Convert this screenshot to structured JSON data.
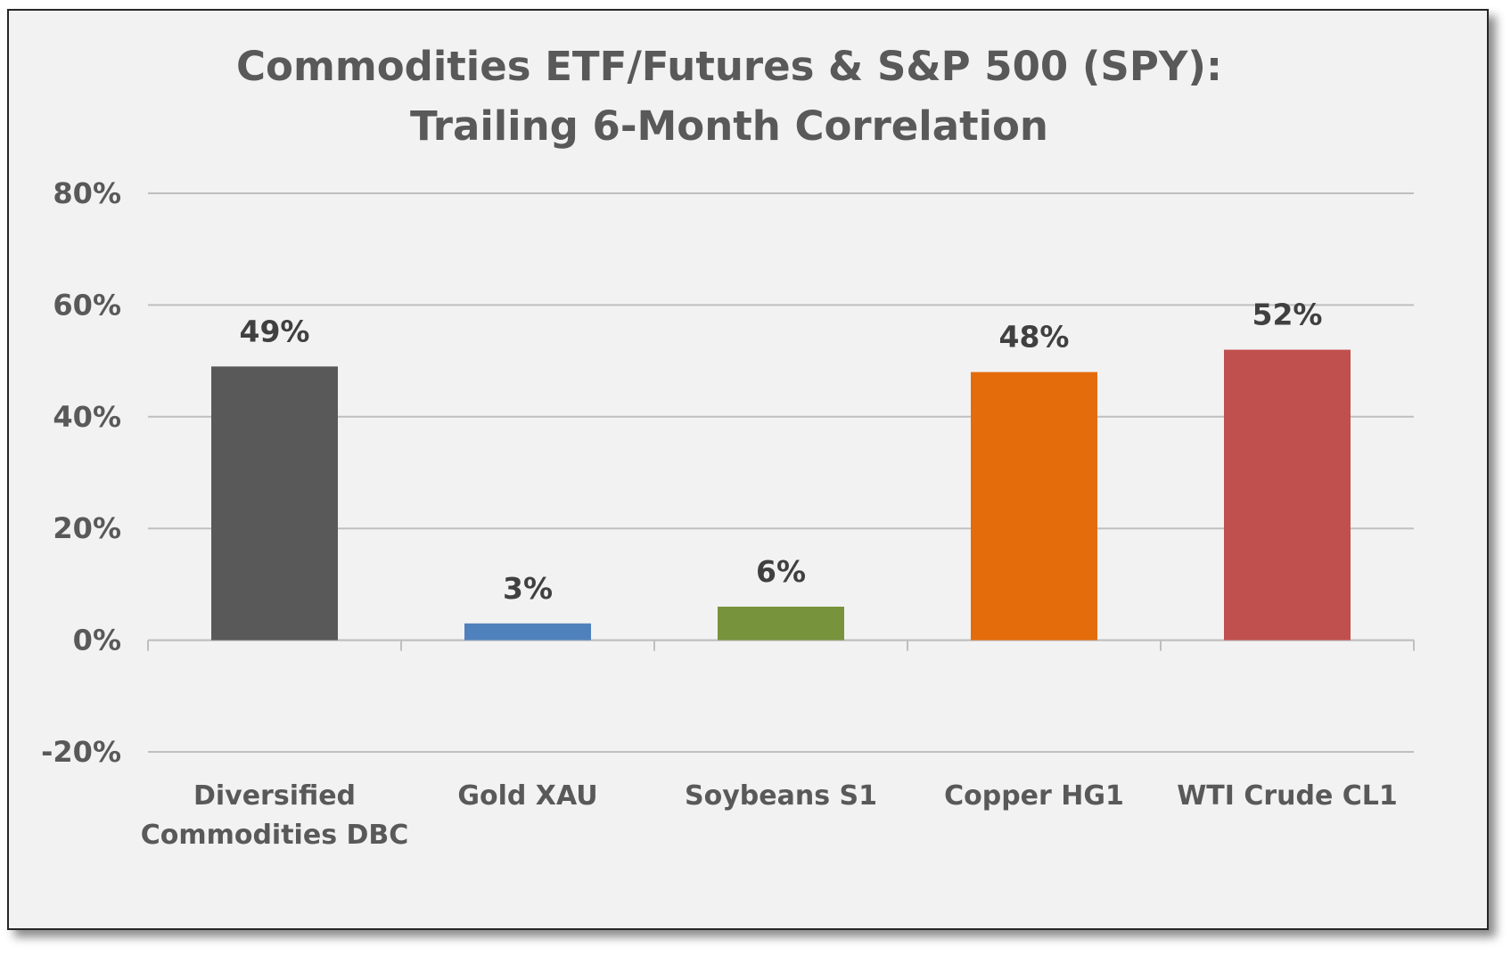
{
  "chart_data": {
    "type": "bar",
    "title_lines": [
      "Commodities ETF/Futures & S&P 500 (SPY):",
      "Trailing 6-Month Correlation"
    ],
    "categories": [
      [
        "Diversified",
        "Commodities DBC"
      ],
      [
        "Gold XAU"
      ],
      [
        "Soybeans S1"
      ],
      [
        "Copper HG1"
      ],
      [
        "WTI Crude CL1"
      ]
    ],
    "values": [
      49,
      3,
      6,
      48,
      52
    ],
    "data_labels": [
      "49%",
      "3%",
      "6%",
      "48%",
      "52%"
    ],
    "colors": [
      "#595959",
      "#4f81bd",
      "#77933c",
      "#e46c0a",
      "#c0504d"
    ],
    "ylim": [
      -20,
      80
    ],
    "yticks": [
      80,
      60,
      40,
      20,
      0,
      -20
    ],
    "ytick_labels": [
      "80%",
      "60%",
      "40%",
      "20%",
      "0%",
      "-20%"
    ],
    "grid": true,
    "legend": false
  }
}
